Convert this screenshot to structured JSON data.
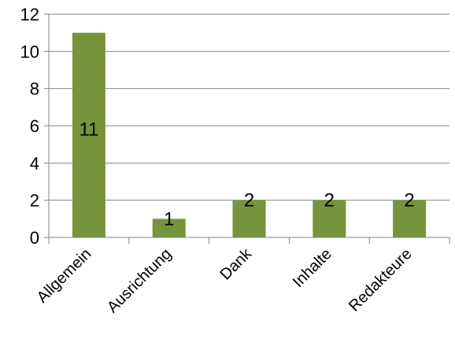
{
  "chart_data": {
    "type": "bar",
    "categories": [
      "Allgemein",
      "Ausrichtung",
      "Dank",
      "Inhalte",
      "Redakteure"
    ],
    "values": [
      11,
      1,
      2,
      2,
      2
    ],
    "data_labels": [
      "11",
      "1",
      "2",
      "2",
      "2"
    ],
    "ylim": [
      0,
      12
    ],
    "y_ticks": [
      0,
      2,
      4,
      6,
      8,
      10,
      12
    ],
    "grid": true,
    "bar_color": "#77933C",
    "grid_color": "#868686",
    "axis_color": "#868686"
  }
}
